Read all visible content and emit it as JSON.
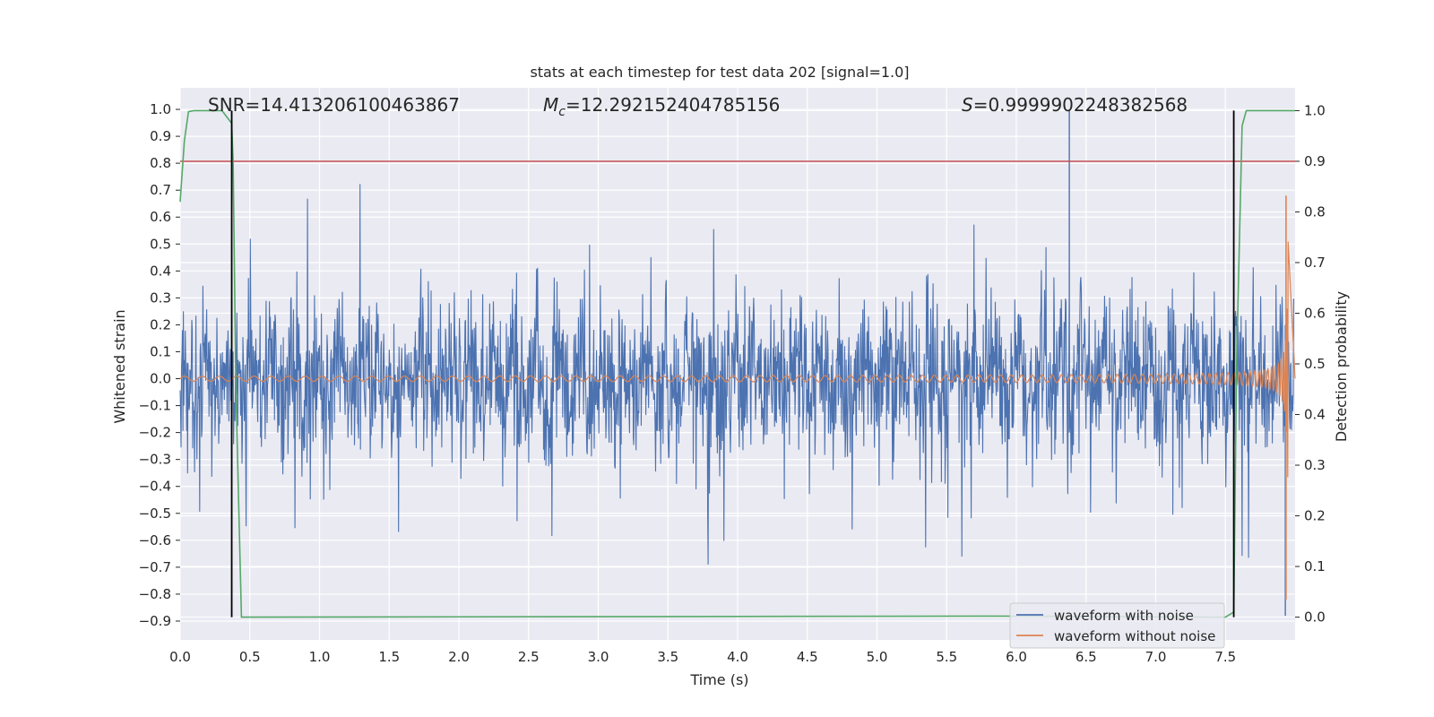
{
  "chart_data": {
    "type": "line",
    "title": "stats at each timestep for test data 202 [signal=1.0]",
    "xlabel": "Time (s)",
    "ylabel": "Whitened strain",
    "y2label": "Detection probability",
    "xlim": [
      0.0,
      8.0
    ],
    "ylim": [
      -0.97,
      1.08
    ],
    "y2lim": [
      -0.045,
      1.045
    ],
    "x_ticks": [
      0.0,
      0.5,
      1.0,
      1.5,
      2.0,
      2.5,
      3.0,
      3.5,
      4.0,
      4.5,
      5.0,
      5.5,
      6.0,
      6.5,
      7.0,
      7.5
    ],
    "x_tick_labels": [
      "0.0",
      "0.5",
      "1.0",
      "1.5",
      "2.0",
      "2.5",
      "3.0",
      "3.5",
      "4.0",
      "4.5",
      "5.0",
      "5.5",
      "6.0",
      "6.5",
      "7.0",
      "7.5"
    ],
    "y_ticks": [
      1.0,
      0.9,
      0.8,
      0.7,
      0.6,
      0.5,
      0.4,
      0.3,
      0.2,
      0.1,
      0.0,
      -0.1,
      -0.2,
      -0.3,
      -0.4,
      -0.5,
      -0.6,
      -0.7,
      -0.8,
      -0.9
    ],
    "y_tick_labels": [
      "1.0",
      "0.9",
      "0.8",
      "0.7",
      "0.6",
      "0.5",
      "0.4",
      "0.3",
      "0.2",
      "0.1",
      "0.0",
      "−0.1",
      "−0.2",
      "−0.3",
      "−0.4",
      "−0.5",
      "−0.6",
      "−0.7",
      "−0.8",
      "−0.9"
    ],
    "y2_ticks": [
      1.0,
      0.9,
      0.8,
      0.7,
      0.6,
      0.5,
      0.4,
      0.3,
      0.2,
      0.1,
      0.0
    ],
    "y2_tick_labels": [
      "1.0",
      "0.9",
      "0.8",
      "0.7",
      "0.6",
      "0.5",
      "0.4",
      "0.3",
      "0.2",
      "0.1",
      "0.0"
    ],
    "grid": true,
    "legend_position": "bottom-right",
    "annotations": {
      "snr": "SNR=14.413206100463867",
      "mc_symbol": "M",
      "mc_subscript": "c",
      "mc_value": "=12.292152404785156",
      "s_symbol": "S",
      "s_value": "=0.9999902248382568"
    },
    "series": [
      {
        "name": "waveform with noise",
        "color": "#4c72b0",
        "description_kind": "noise",
        "typical_envelope": [
          -0.45,
          0.45
        ],
        "max_value": 1.0,
        "min_value": -0.88
      },
      {
        "name": "waveform without noise",
        "color": "#dd8452",
        "description_kind": "chirp",
        "start_amplitude": 0.01,
        "peak_value": 0.68,
        "min_value": -0.82,
        "merger_time": 7.95
      }
    ],
    "threshold_line": {
      "axis": "y2",
      "value": 0.9,
      "color": "#c44e52"
    },
    "detection_probability": {
      "axis": "y2",
      "color": "#55a868",
      "x": [
        0.0,
        0.03,
        0.06,
        0.1,
        0.3,
        0.37,
        0.38,
        0.4,
        0.44,
        5.8,
        7.5,
        7.56,
        7.58,
        7.62,
        7.65,
        8.0
      ],
      "y": [
        0.82,
        0.94,
        0.998,
        1.0,
        1.0,
        0.975,
        0.9,
        0.45,
        0.0,
        0.002,
        0.0,
        0.01,
        0.5,
        0.97,
        1.0,
        1.0
      ]
    },
    "vertical_markers": {
      "x": [
        0.37,
        7.56
      ],
      "color": "#000000"
    }
  }
}
